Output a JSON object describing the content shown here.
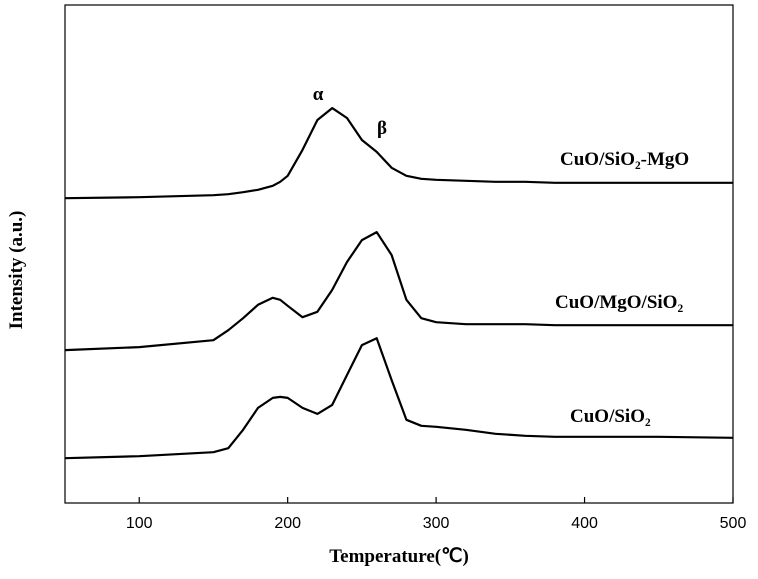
{
  "chart_data": {
    "type": "line",
    "xlabel": "Temperature(℃)",
    "ylabel": "Intensity (a.u.)",
    "xlim": [
      50,
      500
    ],
    "xticks": [
      100,
      200,
      300,
      400,
      500
    ],
    "ylim": [
      0,
      100
    ],
    "annotations": [
      "α",
      "β"
    ],
    "x": [
      50,
      100,
      150,
      160,
      170,
      180,
      190,
      195,
      200,
      210,
      220,
      230,
      240,
      250,
      260,
      270,
      280,
      290,
      300,
      320,
      340,
      360,
      380,
      400,
      450,
      500
    ],
    "series": [
      {
        "name": "CuO/SiO₂-MgO",
        "color": "#000000",
        "values": [
          61.2,
          61.4,
          61.8,
          62.0,
          62.4,
          62.9,
          63.7,
          64.5,
          65.7,
          70.9,
          76.9,
          79.3,
          77.3,
          72.9,
          70.5,
          67.3,
          65.7,
          65.1,
          64.9,
          64.7,
          64.5,
          64.5,
          64.3,
          64.3,
          64.3,
          64.3
        ]
      },
      {
        "name": "CuO/MgO/SiO₂",
        "color": "#000000",
        "values": [
          30.7,
          31.3,
          32.7,
          34.7,
          37.1,
          39.8,
          41.2,
          40.8,
          39.6,
          37.3,
          38.4,
          42.8,
          48.4,
          52.8,
          54.4,
          49.8,
          40.8,
          37.1,
          36.3,
          35.9,
          35.9,
          35.9,
          35.7,
          35.7,
          35.7,
          35.7
        ]
      },
      {
        "name": "CuO/SiO₂",
        "color": "#000000",
        "values": [
          9.0,
          9.4,
          10.2,
          11.0,
          14.7,
          19.1,
          21.1,
          21.3,
          21.1,
          19.1,
          17.9,
          19.7,
          25.7,
          31.7,
          33.1,
          24.7,
          16.7,
          15.5,
          15.3,
          14.7,
          13.9,
          13.5,
          13.3,
          13.3,
          13.3,
          13.1
        ]
      }
    ]
  }
}
